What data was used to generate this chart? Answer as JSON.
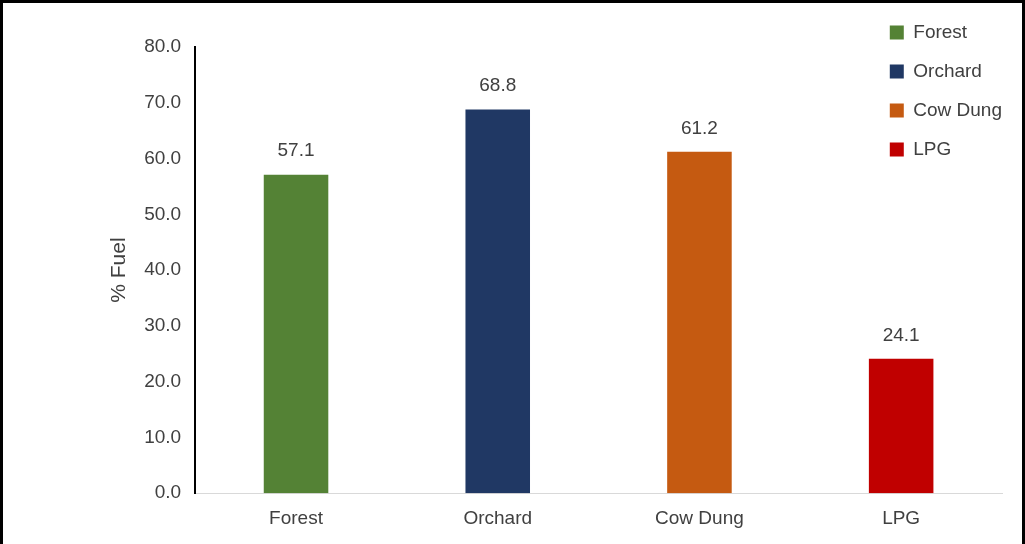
{
  "chart_data": {
    "type": "bar",
    "ylabel": "% Fuel",
    "categories": [
      "Forest",
      "Orchard",
      "Cow Dung",
      "LPG"
    ],
    "series": [
      {
        "name": "Forest",
        "color": "#548235",
        "values": [
          57.1,
          null,
          null,
          null
        ]
      },
      {
        "name": "Orchard",
        "color": "#203864",
        "values": [
          null,
          68.8,
          null,
          null
        ]
      },
      {
        "name": "Cow Dung",
        "color": "#c55a11",
        "values": [
          null,
          null,
          61.2,
          null
        ]
      },
      {
        "name": "LPG",
        "color": "#c00000",
        "values": [
          null,
          null,
          null,
          24.1
        ]
      }
    ],
    "ylim": [
      0,
      80
    ],
    "yticks": [
      {
        "value": 0,
        "label": "0.0"
      },
      {
        "value": 10,
        "label": "10.0"
      },
      {
        "value": 20,
        "label": "20.0"
      },
      {
        "value": 30,
        "label": "30.0"
      },
      {
        "value": 40,
        "label": "40.0"
      },
      {
        "value": 50,
        "label": "50.0"
      },
      {
        "value": 60,
        "label": "60.0"
      },
      {
        "value": 70,
        "label": "70.0"
      },
      {
        "value": 80,
        "label": "80.0"
      }
    ],
    "grid": false,
    "legend": "top right",
    "data_labels": true
  }
}
